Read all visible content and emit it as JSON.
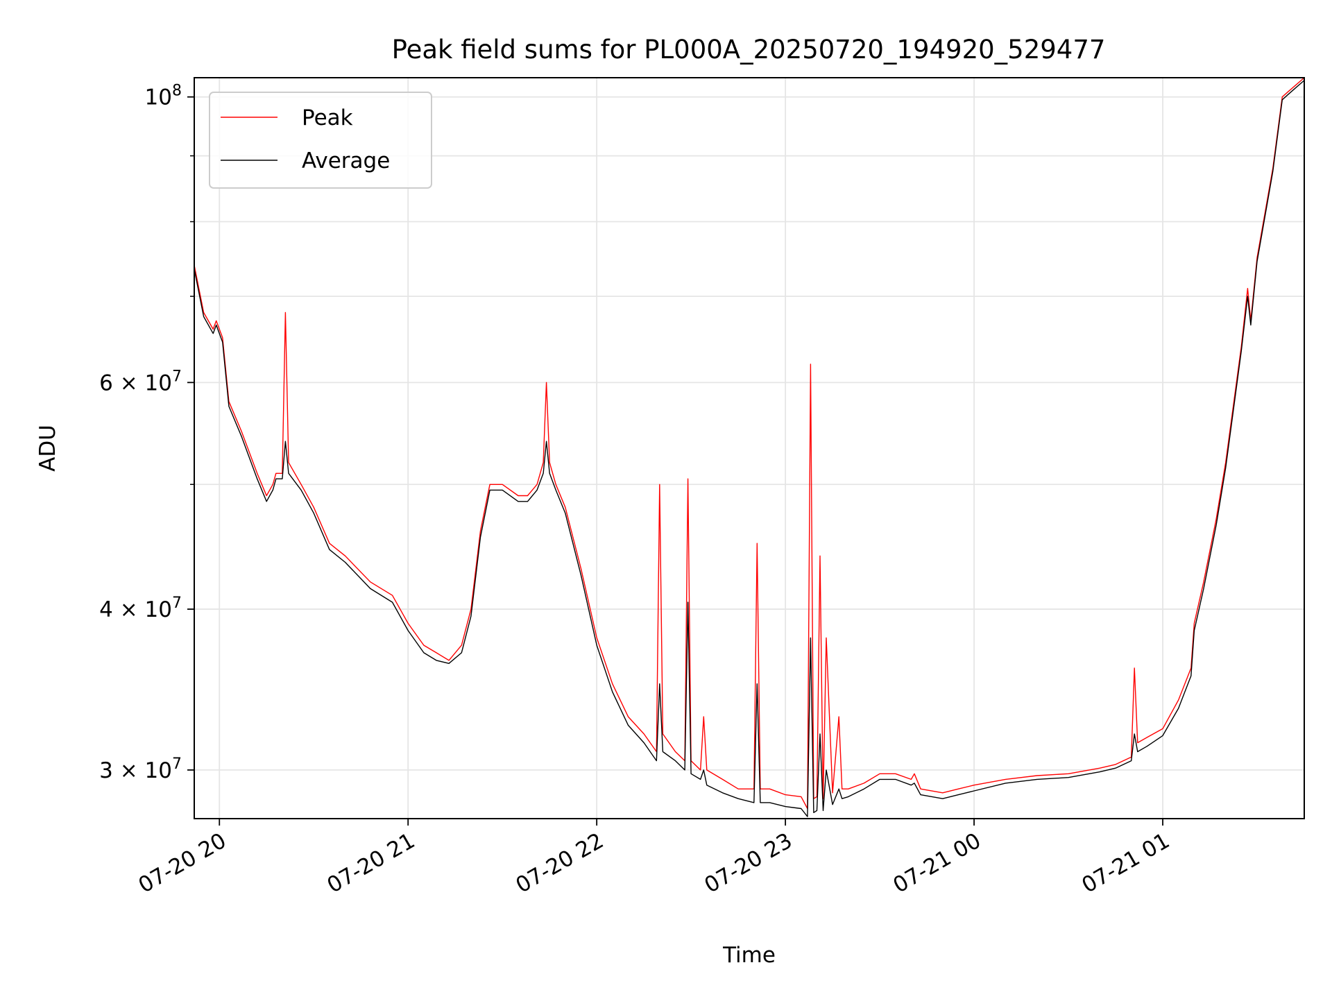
{
  "chart_data": {
    "type": "line",
    "title": "Peak field sums for PL000A_20250720_194920_529477",
    "xlabel": "Time",
    "ylabel": "ADU",
    "y_scale": "log",
    "ylim": [
      27500000,
      103500000
    ],
    "xlim": [
      "2025-07-20T19:52",
      "2025-07-21T01:45"
    ],
    "x_ticks": [
      "2025-07-20T20:00",
      "2025-07-20T21:00",
      "2025-07-20T22:00",
      "2025-07-20T23:00",
      "2025-07-21T00:00",
      "2025-07-21T01:00"
    ],
    "x_tick_labels": [
      "07-20 20",
      "07-20 21",
      "07-20 22",
      "07-20 23",
      "07-21 00",
      "07-21 01"
    ],
    "y_ticks": [
      30000000,
      40000000,
      60000000,
      100000000
    ],
    "y_tick_labels": [
      {
        "mant": "3",
        "exp": "7"
      },
      {
        "mant": "4",
        "exp": "7"
      },
      {
        "mant": "6",
        "exp": "7"
      },
      {
        "mant": "",
        "exp": "8"
      }
    ],
    "y_minor_ticks": [
      50000000,
      70000000,
      80000000,
      90000000
    ],
    "grid": true,
    "legend_position": "top-left",
    "series": [
      {
        "name": "Peak",
        "color": "#ff0000",
        "x": [
          "2025-07-20T19:52",
          "2025-07-20T19:55",
          "2025-07-20T19:58",
          "2025-07-20T19:59",
          "2025-07-20T20:01",
          "2025-07-20T20:03",
          "2025-07-20T20:07",
          "2025-07-20T20:12",
          "2025-07-20T20:15",
          "2025-07-20T20:17",
          "2025-07-20T20:18",
          "2025-07-20T20:20",
          "2025-07-20T20:21",
          "2025-07-20T20:22",
          "2025-07-20T20:26",
          "2025-07-20T20:30",
          "2025-07-20T20:35",
          "2025-07-20T20:40",
          "2025-07-20T20:48",
          "2025-07-20T20:55",
          "2025-07-20T21:00",
          "2025-07-20T21:05",
          "2025-07-20T21:09",
          "2025-07-20T21:13",
          "2025-07-20T21:17",
          "2025-07-20T21:20",
          "2025-07-20T21:23",
          "2025-07-20T21:26",
          "2025-07-20T21:30",
          "2025-07-20T21:35",
          "2025-07-20T21:38",
          "2025-07-20T21:41",
          "2025-07-20T21:43",
          "2025-07-20T21:44",
          "2025-07-20T21:45",
          "2025-07-20T21:47",
          "2025-07-20T21:50",
          "2025-07-20T21:55",
          "2025-07-20T22:00",
          "2025-07-20T22:05",
          "2025-07-20T22:10",
          "2025-07-20T22:15",
          "2025-07-20T22:19",
          "2025-07-20T22:20",
          "2025-07-20T22:21",
          "2025-07-20T22:25",
          "2025-07-20T22:28",
          "2025-07-20T22:29",
          "2025-07-20T22:30",
          "2025-07-20T22:33",
          "2025-07-20T22:34",
          "2025-07-20T22:35",
          "2025-07-20T22:40",
          "2025-07-20T22:45",
          "2025-07-20T22:50",
          "2025-07-20T22:51",
          "2025-07-20T22:52",
          "2025-07-20T22:55",
          "2025-07-20T23:00",
          "2025-07-20T23:05",
          "2025-07-20T23:07",
          "2025-07-20T23:08",
          "2025-07-20T23:09",
          "2025-07-20T23:10",
          "2025-07-20T23:11",
          "2025-07-20T23:12",
          "2025-07-20T23:13",
          "2025-07-20T23:15",
          "2025-07-20T23:17",
          "2025-07-20T23:18",
          "2025-07-20T23:20",
          "2025-07-20T23:25",
          "2025-07-20T23:30",
          "2025-07-20T23:35",
          "2025-07-20T23:40",
          "2025-07-20T23:41",
          "2025-07-20T23:43",
          "2025-07-20T23:50",
          "2025-07-20T23:55",
          "2025-07-21T00:00",
          "2025-07-21T00:10",
          "2025-07-21T00:20",
          "2025-07-21T00:30",
          "2025-07-21T00:40",
          "2025-07-21T00:45",
          "2025-07-21T00:50",
          "2025-07-21T00:51",
          "2025-07-21T00:52",
          "2025-07-21T00:55",
          "2025-07-21T01:00",
          "2025-07-21T01:05",
          "2025-07-21T01:09",
          "2025-07-21T01:10",
          "2025-07-21T01:13",
          "2025-07-21T01:17",
          "2025-07-21T01:20",
          "2025-07-21T01:25",
          "2025-07-21T01:27",
          "2025-07-21T01:28",
          "2025-07-21T01:30",
          "2025-07-21T01:35",
          "2025-07-21T01:38",
          "2025-07-21T01:40",
          "2025-07-21T01:42",
          "2025-07-21T01:45"
        ],
        "y": [
          74000000,
          68000000,
          66000000,
          67000000,
          65000000,
          58000000,
          55000000,
          51000000,
          49000000,
          50000000,
          51000000,
          51000000,
          68000000,
          52000000,
          50000000,
          48000000,
          45000000,
          44000000,
          42000000,
          41000000,
          39000000,
          37500000,
          37000000,
          36500000,
          37500000,
          40000000,
          46000000,
          50000000,
          50000000,
          49000000,
          49000000,
          50000000,
          52000000,
          60000000,
          52000000,
          50000000,
          48000000,
          43000000,
          38000000,
          35000000,
          33000000,
          32000000,
          31000000,
          50000000,
          32000000,
          31000000,
          30500000,
          50500000,
          30500000,
          30000000,
          33000000,
          30000000,
          29500000,
          29000000,
          29000000,
          45000000,
          29000000,
          29000000,
          28700000,
          28600000,
          28000000,
          62000000,
          28500000,
          28600000,
          44000000,
          28500000,
          38000000,
          28800000,
          33000000,
          29000000,
          29000000,
          29300000,
          29800000,
          29800000,
          29500000,
          29800000,
          29000000,
          28800000,
          29000000,
          29200000,
          29500000,
          29700000,
          29800000,
          30100000,
          30300000,
          30700000,
          36000000,
          31500000,
          31800000,
          32300000,
          34000000,
          36000000,
          39000000,
          42000000,
          47000000,
          52000000,
          64000000,
          71000000,
          67000000,
          75000000,
          88000000,
          100000000,
          101000000,
          102000000,
          103500000
        ]
      },
      {
        "name": "Average",
        "color": "#000000",
        "x": [
          "2025-07-20T19:52",
          "2025-07-20T19:55",
          "2025-07-20T19:58",
          "2025-07-20T19:59",
          "2025-07-20T20:01",
          "2025-07-20T20:03",
          "2025-07-20T20:07",
          "2025-07-20T20:12",
          "2025-07-20T20:15",
          "2025-07-20T20:17",
          "2025-07-20T20:18",
          "2025-07-20T20:20",
          "2025-07-20T20:21",
          "2025-07-20T20:22",
          "2025-07-20T20:26",
          "2025-07-20T20:30",
          "2025-07-20T20:35",
          "2025-07-20T20:40",
          "2025-07-20T20:48",
          "2025-07-20T20:55",
          "2025-07-20T21:00",
          "2025-07-20T21:05",
          "2025-07-20T21:09",
          "2025-07-20T21:13",
          "2025-07-20T21:17",
          "2025-07-20T21:20",
          "2025-07-20T21:23",
          "2025-07-20T21:26",
          "2025-07-20T21:30",
          "2025-07-20T21:35",
          "2025-07-20T21:38",
          "2025-07-20T21:41",
          "2025-07-20T21:43",
          "2025-07-20T21:44",
          "2025-07-20T21:45",
          "2025-07-20T21:47",
          "2025-07-20T21:50",
          "2025-07-20T21:55",
          "2025-07-20T22:00",
          "2025-07-20T22:05",
          "2025-07-20T22:10",
          "2025-07-20T22:15",
          "2025-07-20T22:19",
          "2025-07-20T22:20",
          "2025-07-20T22:21",
          "2025-07-20T22:25",
          "2025-07-20T22:28",
          "2025-07-20T22:29",
          "2025-07-20T22:30",
          "2025-07-20T22:33",
          "2025-07-20T22:34",
          "2025-07-20T22:35",
          "2025-07-20T22:40",
          "2025-07-20T22:45",
          "2025-07-20T22:50",
          "2025-07-20T22:51",
          "2025-07-20T22:52",
          "2025-07-20T22:55",
          "2025-07-20T23:00",
          "2025-07-20T23:05",
          "2025-07-20T23:07",
          "2025-07-20T23:08",
          "2025-07-20T23:09",
          "2025-07-20T23:10",
          "2025-07-20T23:11",
          "2025-07-20T23:12",
          "2025-07-20T23:13",
          "2025-07-20T23:15",
          "2025-07-20T23:17",
          "2025-07-20T23:18",
          "2025-07-20T23:20",
          "2025-07-20T23:25",
          "2025-07-20T23:30",
          "2025-07-20T23:35",
          "2025-07-20T23:40",
          "2025-07-20T23:41",
          "2025-07-20T23:43",
          "2025-07-20T23:50",
          "2025-07-20T23:55",
          "2025-07-21T00:00",
          "2025-07-21T00:10",
          "2025-07-21T00:20",
          "2025-07-21T00:30",
          "2025-07-21T00:40",
          "2025-07-21T00:45",
          "2025-07-21T00:50",
          "2025-07-21T00:51",
          "2025-07-21T00:52",
          "2025-07-21T00:55",
          "2025-07-21T01:00",
          "2025-07-21T01:05",
          "2025-07-21T01:09",
          "2025-07-21T01:10",
          "2025-07-21T01:13",
          "2025-07-21T01:17",
          "2025-07-21T01:20",
          "2025-07-21T01:25",
          "2025-07-21T01:27",
          "2025-07-21T01:28",
          "2025-07-21T01:30",
          "2025-07-21T01:35",
          "2025-07-21T01:38",
          "2025-07-21T01:40",
          "2025-07-21T01:42",
          "2025-07-21T01:45"
        ],
        "y": [
          73500000,
          67500000,
          65500000,
          66500000,
          64500000,
          57500000,
          54500000,
          50500000,
          48500000,
          49500000,
          50500000,
          50500000,
          54000000,
          51000000,
          49500000,
          47500000,
          44500000,
          43500000,
          41500000,
          40500000,
          38500000,
          37000000,
          36500000,
          36300000,
          37000000,
          39500000,
          45500000,
          49500000,
          49500000,
          48500000,
          48500000,
          49500000,
          51000000,
          54000000,
          51000000,
          49500000,
          47500000,
          42500000,
          37500000,
          34500000,
          32500000,
          31500000,
          30500000,
          35000000,
          31000000,
          30500000,
          30000000,
          40500000,
          29800000,
          29500000,
          30000000,
          29200000,
          28800000,
          28500000,
          28300000,
          35000000,
          28300000,
          28300000,
          28100000,
          28000000,
          27600000,
          38000000,
          27800000,
          27900000,
          32000000,
          27900000,
          30000000,
          28200000,
          29000000,
          28500000,
          28600000,
          29000000,
          29500000,
          29500000,
          29200000,
          29300000,
          28700000,
          28500000,
          28700000,
          28900000,
          29300000,
          29500000,
          29600000,
          29900000,
          30100000,
          30500000,
          32000000,
          31000000,
          31300000,
          31900000,
          33500000,
          35500000,
          38500000,
          41500000,
          46500000,
          51500000,
          63500000,
          70000000,
          66500000,
          74500000,
          87500000,
          99500000,
          100500000,
          101500000,
          103000000
        ]
      }
    ]
  }
}
